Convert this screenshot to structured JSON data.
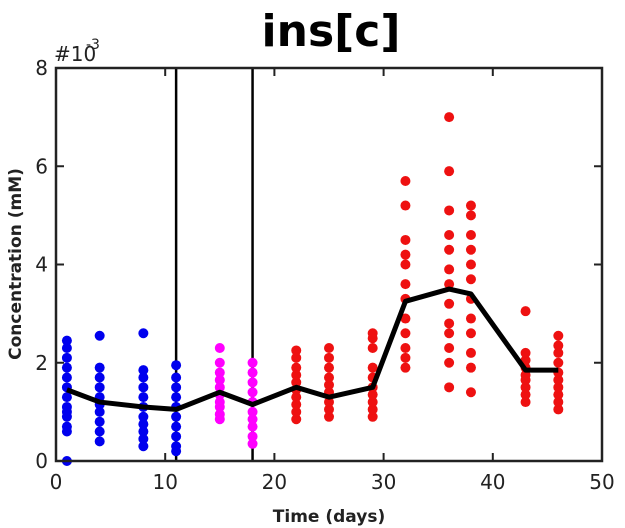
{
  "chart_data": {
    "type": "scatter",
    "title": "ins[c]",
    "xlabel": "Time (days)",
    "ylabel": "Concentration (mM)",
    "y_exponent_base": "#10",
    "y_exponent_power": "-3",
    "xlim": [
      0,
      50
    ],
    "ylim": [
      0,
      8
    ],
    "x_ticks": [
      0,
      10,
      20,
      30,
      40,
      50
    ],
    "y_ticks": [
      0,
      2,
      4,
      6,
      8
    ],
    "grid": false,
    "vertical_lines": [
      11,
      18
    ],
    "colors": {
      "blue": "#0000ee",
      "magenta": "#ff00ff",
      "red": "#ee1111",
      "line": "#000000"
    },
    "scatter_groups": [
      {
        "x": 1,
        "color": "blue",
        "y": [
          0.0,
          0.6,
          0.7,
          0.9,
          1.0,
          1.1,
          1.3,
          1.5,
          1.7,
          1.9,
          2.1,
          2.3,
          2.45
        ]
      },
      {
        "x": 4,
        "color": "blue",
        "y": [
          0.4,
          0.6,
          0.8,
          1.0,
          1.15,
          1.3,
          1.5,
          1.7,
          1.9,
          2.55
        ]
      },
      {
        "x": 8,
        "color": "blue",
        "y": [
          0.3,
          0.45,
          0.6,
          0.75,
          0.9,
          1.1,
          1.3,
          1.5,
          1.7,
          1.85,
          2.6
        ]
      },
      {
        "x": 11,
        "color": "blue",
        "y": [
          0.2,
          0.3,
          0.5,
          0.7,
          0.9,
          1.1,
          1.3,
          1.5,
          1.7,
          1.95
        ]
      },
      {
        "x": 15,
        "color": "magenta",
        "y": [
          0.85,
          0.95,
          1.1,
          1.2,
          1.35,
          1.5,
          1.65,
          1.8,
          2.0,
          2.3
        ]
      },
      {
        "x": 18,
        "color": "magenta",
        "y": [
          0.35,
          0.5,
          0.7,
          0.85,
          1.0,
          1.2,
          1.4,
          1.6,
          1.8,
          2.0
        ]
      },
      {
        "x": 22,
        "color": "red",
        "y": [
          0.85,
          1.0,
          1.15,
          1.3,
          1.45,
          1.6,
          1.75,
          1.9,
          2.1,
          2.25
        ]
      },
      {
        "x": 25,
        "color": "red",
        "y": [
          0.9,
          1.05,
          1.2,
          1.4,
          1.55,
          1.7,
          1.9,
          2.1,
          2.3
        ]
      },
      {
        "x": 29,
        "color": "red",
        "y": [
          0.9,
          1.05,
          1.2,
          1.35,
          1.5,
          1.7,
          1.9,
          2.3,
          2.5,
          2.6
        ]
      },
      {
        "x": 32,
        "color": "red",
        "y": [
          1.9,
          2.1,
          2.3,
          2.6,
          2.9,
          3.3,
          3.6,
          4.0,
          4.2,
          4.5,
          5.2,
          5.7
        ]
      },
      {
        "x": 36,
        "color": "red",
        "y": [
          1.5,
          2.0,
          2.3,
          2.6,
          2.8,
          3.2,
          3.6,
          3.9,
          4.3,
          4.6,
          5.1,
          5.9,
          7.0
        ]
      },
      {
        "x": 38,
        "color": "red",
        "y": [
          1.4,
          1.9,
          2.2,
          2.6,
          2.9,
          3.3,
          3.7,
          4.0,
          4.3,
          4.6,
          5.0,
          5.2
        ]
      },
      {
        "x": 43,
        "color": "red",
        "y": [
          1.2,
          1.35,
          1.5,
          1.65,
          1.75,
          1.9,
          2.05,
          2.2,
          3.05
        ]
      },
      {
        "x": 46,
        "color": "red",
        "y": [
          1.05,
          1.2,
          1.35,
          1.5,
          1.65,
          1.8,
          2.0,
          2.2,
          2.35,
          2.55
        ]
      }
    ],
    "mean_line": {
      "x": [
        1,
        4,
        8,
        11,
        15,
        18,
        22,
        25,
        29,
        32,
        36,
        38,
        43,
        46
      ],
      "y": [
        1.45,
        1.2,
        1.1,
        1.05,
        1.4,
        1.15,
        1.5,
        1.3,
        1.5,
        3.25,
        3.5,
        3.4,
        1.85,
        1.85
      ]
    }
  }
}
